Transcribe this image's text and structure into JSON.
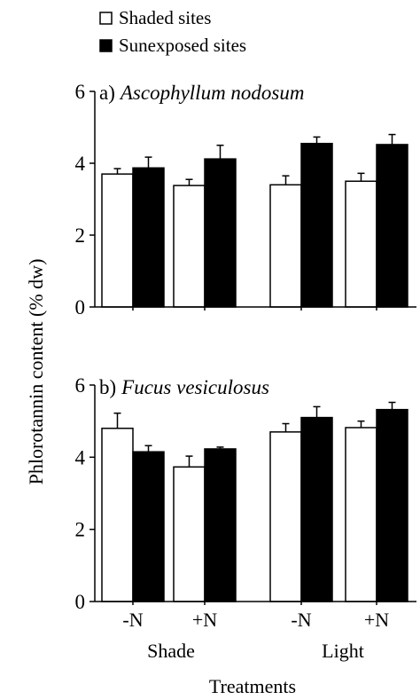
{
  "legend": [
    {
      "label": "Shaded sites",
      "color": "#ffffff"
    },
    {
      "label": "Sunexposed sites",
      "color": "#000000"
    }
  ],
  "ylabel": "Phlorotannin content (% dw)",
  "xlabel": "Treatments",
  "tick_labels": [
    "-N",
    "+N",
    "-N",
    "+N"
  ],
  "group_labels": [
    "Shade",
    "Light"
  ],
  "chart_data": [
    {
      "type": "bar",
      "title_prefix": "a)",
      "title": "Ascophyllum nodosum",
      "categories": [
        "Shade -N",
        "Shade +N",
        "Light -N",
        "Light +N"
      ],
      "ylim": [
        0,
        6
      ],
      "yticks": [
        0,
        2,
        4,
        6
      ],
      "series": [
        {
          "name": "Shaded sites",
          "color": "#ffffff",
          "values": [
            3.7,
            3.38,
            3.4,
            3.5
          ],
          "errors": [
            0.15,
            0.17,
            0.25,
            0.22
          ]
        },
        {
          "name": "Sunexposed sites",
          "color": "#000000",
          "values": [
            3.87,
            4.12,
            4.55,
            4.52
          ],
          "errors": [
            0.3,
            0.38,
            0.18,
            0.28
          ]
        }
      ]
    },
    {
      "type": "bar",
      "title_prefix": "b)",
      "title": "Fucus vesiculosus",
      "categories": [
        "Shade -N",
        "Shade +N",
        "Light -N",
        "Light +N"
      ],
      "ylim": [
        0,
        6
      ],
      "yticks": [
        0,
        2,
        4,
        6
      ],
      "series": [
        {
          "name": "Shaded sites",
          "color": "#ffffff",
          "values": [
            4.8,
            3.73,
            4.7,
            4.82
          ],
          "errors": [
            0.42,
            0.3,
            0.23,
            0.18
          ]
        },
        {
          "name": "Sunexposed sites",
          "color": "#000000",
          "values": [
            4.15,
            4.23,
            5.1,
            5.32
          ],
          "errors": [
            0.17,
            0.05,
            0.3,
            0.2
          ]
        }
      ]
    }
  ]
}
